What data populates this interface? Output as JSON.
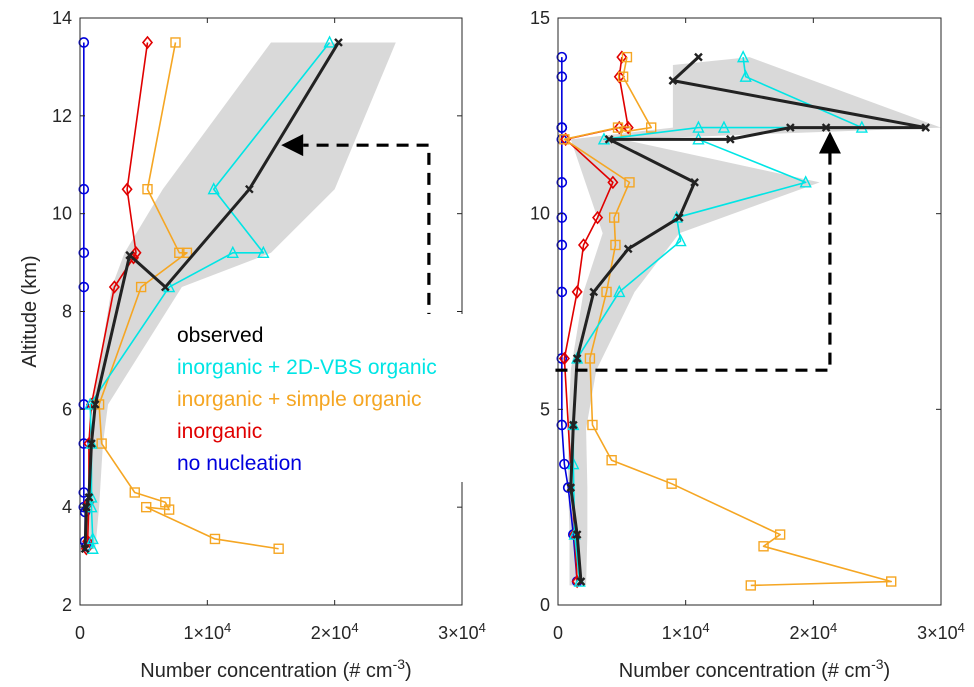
{
  "chart_data": [
    {
      "type": "line",
      "panel": "left",
      "ylabel": "Altitude (km)",
      "xlabel": "Number concentration (# cm^-3)",
      "xlim": [
        0,
        30000
      ],
      "ylim": [
        2,
        14
      ],
      "x_ticks": [
        {
          "value": 0,
          "label": "0"
        },
        {
          "value": 10000,
          "label": "1×10",
          "sup": "4"
        },
        {
          "value": 20000,
          "label": "2×10",
          "sup": "4"
        },
        {
          "value": 30000,
          "label": "3×10",
          "sup": "4"
        }
      ],
      "y_ticks": [
        {
          "value": 2,
          "label": "2"
        },
        {
          "value": 4,
          "label": "4"
        },
        {
          "value": 6,
          "label": "6"
        },
        {
          "value": 8,
          "label": "8"
        },
        {
          "value": 10,
          "label": "10"
        },
        {
          "value": 12,
          "label": "12"
        },
        {
          "value": 14,
          "label": "14"
        }
      ],
      "shaded_band": {
        "left": [
          [
            300,
            3.15
          ],
          [
            600,
            4
          ],
          [
            900,
            5.3
          ],
          [
            1000,
            6.1
          ],
          [
            2500,
            8.5
          ],
          [
            3500,
            9.2
          ],
          [
            6500,
            10.5
          ],
          [
            15000,
            13.5
          ]
        ],
        "right": [
          [
            1200,
            3.15
          ],
          [
            1500,
            4
          ],
          [
            1800,
            5.3
          ],
          [
            2200,
            6.1
          ],
          [
            8000,
            8.5
          ],
          [
            15000,
            9.2
          ],
          [
            20000,
            10.5
          ],
          [
            24800,
            13.5
          ]
        ]
      },
      "annotation_arrow": {
        "points": [
          [
            27400,
            6.5
          ],
          [
            27400,
            11.4
          ],
          [
            15800,
            11.4
          ]
        ],
        "style": "dashed"
      },
      "series": [
        {
          "name": "observed",
          "color": "#222222",
          "marker": "x",
          "points": [
            [
              20300,
              13.5
            ],
            [
              13300,
              10.5
            ],
            [
              6700,
              8.5
            ],
            [
              3900,
              9.15
            ],
            [
              1200,
              6.1
            ],
            [
              900,
              5.3
            ],
            [
              700,
              4.2
            ],
            [
              500,
              4
            ],
            [
              400,
              3.15
            ]
          ]
        },
        {
          "name": "inorganic + 2D-VBS organic",
          "color": "#00e5e5",
          "marker": "triangle",
          "points": [
            [
              19600,
              13.5
            ],
            [
              10500,
              10.5
            ],
            [
              14400,
              9.2
            ],
            [
              12000,
              9.2
            ],
            [
              7000,
              8.5
            ],
            [
              800,
              6.1
            ],
            [
              900,
              5.3
            ],
            [
              900,
              4.2
            ],
            [
              900,
              4
            ],
            [
              1000,
              3.35
            ],
            [
              1000,
              3.15
            ]
          ]
        },
        {
          "name": "inorganic + simple organic",
          "color": "#f5a623",
          "marker": "square",
          "points": [
            [
              7500,
              13.5
            ],
            [
              5300,
              10.5
            ],
            [
              7800,
              9.2
            ],
            [
              8400,
              9.2
            ],
            [
              4800,
              8.5
            ],
            [
              1500,
              6.1
            ],
            [
              1700,
              5.3
            ],
            [
              4300,
              4.3
            ],
            [
              6700,
              4.1
            ],
            [
              7000,
              3.95
            ],
            [
              5200,
              4
            ],
            [
              10600,
              3.35
            ],
            [
              15600,
              3.15
            ]
          ]
        },
        {
          "name": "inorganic",
          "color": "#e00000",
          "marker": "diamond",
          "points": [
            [
              5300,
              13.5
            ],
            [
              3700,
              10.5
            ],
            [
              4400,
              9.2
            ],
            [
              4200,
              9.1
            ],
            [
              2700,
              8.5
            ],
            [
              900,
              6.1
            ],
            [
              700,
              5.3
            ],
            [
              700,
              4.1
            ],
            [
              600,
              3.3
            ],
            [
              500,
              3.15
            ]
          ]
        },
        {
          "name": "no nucleation",
          "color": "#0000dd",
          "marker": "circle",
          "points": [
            [
              300,
              13.5
            ],
            [
              300,
              10.5
            ],
            [
              300,
              9.2
            ],
            [
              300,
              8.5
            ],
            [
              300,
              6.1
            ],
            [
              300,
              5.3
            ],
            [
              300,
              4.3
            ],
            [
              300,
              4
            ],
            [
              400,
              3.9
            ],
            [
              400,
              3.3
            ],
            [
              500,
              3.2
            ]
          ]
        }
      ],
      "legend": {
        "placement": "center",
        "entries": [
          {
            "label": "observed",
            "color": "#000000"
          },
          {
            "label": "inorganic + 2D-VBS organic",
            "color": "#00e5e5"
          },
          {
            "label": "inorganic + simple organic",
            "color": "#f5a623"
          },
          {
            "label": "inorganic",
            "color": "#e00000"
          },
          {
            "label": "no nucleation",
            "color": "#0000dd"
          }
        ]
      }
    },
    {
      "type": "line",
      "panel": "right",
      "ylabel": "",
      "xlabel": "Number concentration (# cm^-3)",
      "xlim": [
        0,
        30000
      ],
      "ylim": [
        0,
        15
      ],
      "x_ticks": [
        {
          "value": 0,
          "label": "0"
        },
        {
          "value": 10000,
          "label": "1×10",
          "sup": "4"
        },
        {
          "value": 20000,
          "label": "2×10",
          "sup": "4"
        },
        {
          "value": 30000,
          "label": "3×10",
          "sup": "4"
        }
      ],
      "y_ticks": [
        {
          "value": 0,
          "label": "0"
        },
        {
          "value": 5,
          "label": "5"
        },
        {
          "value": 10,
          "label": "10"
        },
        {
          "value": 15,
          "label": "15"
        }
      ],
      "shaded_band": {
        "left": [
          [
            900,
            0.5
          ],
          [
            900,
            1.8
          ],
          [
            800,
            3
          ],
          [
            800,
            4.5
          ],
          [
            1000,
            6
          ],
          [
            2000,
            8
          ],
          [
            3500,
            9.5
          ],
          [
            1000,
            11.9
          ],
          [
            9000,
            12.2
          ],
          [
            9000,
            13.8
          ]
        ],
        "right": [
          [
            2200,
            0.5
          ],
          [
            2300,
            1.8
          ],
          [
            2300,
            3
          ],
          [
            2200,
            4.5
          ],
          [
            3000,
            6
          ],
          [
            6000,
            8
          ],
          [
            9500,
            9.5
          ],
          [
            20500,
            10.8
          ],
          [
            5000,
            11.9
          ],
          [
            30000,
            12.2
          ],
          [
            15000,
            14
          ]
        ]
      },
      "annotation_arrow": {
        "points": [
          [
            -200,
            6
          ],
          [
            21300,
            6
          ],
          [
            21300,
            12.1
          ]
        ],
        "style": "dashed"
      },
      "series": [
        {
          "name": "observed",
          "color": "#222222",
          "marker": "x",
          "points": [
            [
              11000,
              14
            ],
            [
              9000,
              13.4
            ],
            [
              28800,
              12.2
            ],
            [
              21000,
              12.2
            ],
            [
              18200,
              12.2
            ],
            [
              13500,
              11.9
            ],
            [
              4000,
              11.9
            ],
            [
              10700,
              10.8
            ],
            [
              9500,
              9.9
            ],
            [
              5500,
              9.1
            ],
            [
              2800,
              8
            ],
            [
              1500,
              6.3
            ],
            [
              1200,
              4.6
            ],
            [
              1000,
              3
            ],
            [
              1500,
              1.8
            ],
            [
              1800,
              0.6
            ]
          ]
        },
        {
          "name": "inorganic + 2D-VBS organic",
          "color": "#00e5e5",
          "marker": "triangle",
          "points": [
            [
              14500,
              14
            ],
            [
              14700,
              13.5
            ],
            [
              23800,
              12.2
            ],
            [
              13000,
              12.2
            ],
            [
              11000,
              12.2
            ],
            [
              3600,
              11.9
            ],
            [
              11000,
              11.9
            ],
            [
              19400,
              10.8
            ],
            [
              9300,
              9.9
            ],
            [
              9600,
              9.3
            ],
            [
              4800,
              8
            ],
            [
              1500,
              6.3
            ],
            [
              1200,
              4.6
            ],
            [
              1200,
              3.6
            ],
            [
              1300,
              1.8
            ],
            [
              1700,
              0.6
            ]
          ]
        },
        {
          "name": "inorganic + simple organic",
          "color": "#f5a623",
          "marker": "square",
          "points": [
            [
              5400,
              14
            ],
            [
              5100,
              13.5
            ],
            [
              7300,
              12.2
            ],
            [
              5300,
              12.1
            ],
            [
              4700,
              12.2
            ],
            [
              500,
              11.9
            ],
            [
              5600,
              10.8
            ],
            [
              4400,
              9.9
            ],
            [
              4500,
              9.2
            ],
            [
              3800,
              8
            ],
            [
              2500,
              6.3
            ],
            [
              2700,
              4.6
            ],
            [
              4200,
              3.7
            ],
            [
              8900,
              3.1
            ],
            [
              17400,
              1.8
            ],
            [
              16100,
              1.5
            ],
            [
              26100,
              0.6
            ],
            [
              15100,
              0.5
            ]
          ]
        },
        {
          "name": "inorganic",
          "color": "#e00000",
          "marker": "diamond",
          "points": [
            [
              5000,
              14
            ],
            [
              4800,
              13.5
            ],
            [
              5500,
              12.2
            ],
            [
              4800,
              12.2
            ],
            [
              600,
              11.9
            ],
            [
              4300,
              10.8
            ],
            [
              3100,
              9.9
            ],
            [
              2000,
              9.2
            ],
            [
              1500,
              8
            ],
            [
              500,
              6.3
            ],
            [
              1300,
              1.8
            ],
            [
              1500,
              0.6
            ]
          ]
        },
        {
          "name": "no nucleation",
          "color": "#0000dd",
          "marker": "circle",
          "points": [
            [
              300,
              14
            ],
            [
              300,
              13.5
            ],
            [
              300,
              12.2
            ],
            [
              300,
              12.2
            ],
            [
              300,
              11.9
            ],
            [
              300,
              10.8
            ],
            [
              300,
              9.9
            ],
            [
              300,
              9.2
            ],
            [
              300,
              8
            ],
            [
              300,
              6.3
            ],
            [
              300,
              4.6
            ],
            [
              500,
              3.6
            ],
            [
              800,
              3
            ],
            [
              1200,
              1.8
            ],
            [
              1500,
              0.6
            ]
          ]
        }
      ]
    }
  ]
}
